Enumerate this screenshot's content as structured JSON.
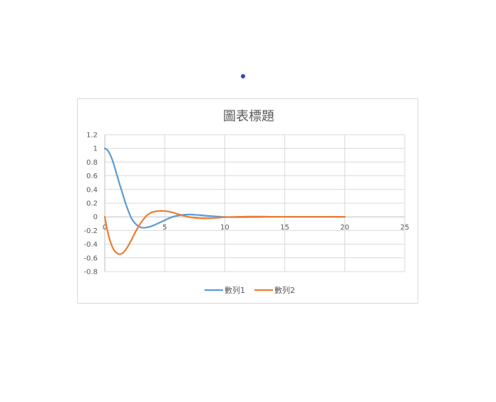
{
  "colors": {
    "series1": "#5b9bd5",
    "series2": "#ed7d31",
    "grid": "#d9d9d9",
    "axis": "#bfbfbf",
    "dot": "#3b3fc2"
  },
  "chart_data": {
    "type": "line",
    "title": "圖表標題",
    "xlabel": "",
    "ylabel": "",
    "xlim": [
      0,
      25
    ],
    "ylim": [
      -0.8,
      1.2
    ],
    "xticks": [
      0,
      5,
      10,
      15,
      20,
      25
    ],
    "yticks": [
      1.2,
      1,
      0.8,
      0.6,
      0.4,
      0.2,
      0,
      -0.2,
      -0.4,
      -0.6,
      -0.8
    ],
    "grid": true,
    "legend": "bottom",
    "series": [
      {
        "name": "數列1",
        "color": "#5b9bd5",
        "x": [
          0,
          0.25,
          0.5,
          0.75,
          1,
          1.25,
          1.5,
          1.75,
          2,
          2.25,
          2.5,
          2.75,
          3,
          3.25,
          3.5,
          3.75,
          4,
          4.5,
          5,
          5.5,
          6,
          6.5,
          7,
          7.5,
          8,
          8.5,
          9,
          9.5,
          10,
          11,
          12,
          13,
          14,
          15,
          16,
          17,
          18,
          19,
          20
        ],
        "y": [
          1.0,
          0.97,
          0.89,
          0.77,
          0.62,
          0.47,
          0.33,
          0.19,
          0.07,
          -0.03,
          -0.09,
          -0.13,
          -0.155,
          -0.16,
          -0.155,
          -0.145,
          -0.13,
          -0.09,
          -0.05,
          -0.01,
          0.015,
          0.028,
          0.033,
          0.03,
          0.024,
          0.016,
          0.009,
          0.003,
          -0.002,
          -0.005,
          -0.004,
          -0.002,
          0.0,
          0.0,
          0.0,
          0.0,
          0.0,
          0.0,
          0.0
        ]
      },
      {
        "name": "數列2",
        "color": "#ed7d31",
        "x": [
          0,
          0.25,
          0.5,
          0.75,
          1,
          1.25,
          1.5,
          1.75,
          2,
          2.25,
          2.5,
          2.75,
          3,
          3.25,
          3.5,
          3.75,
          4,
          4.5,
          5,
          5.5,
          6,
          6.5,
          7,
          7.5,
          8,
          8.5,
          9,
          9.5,
          10,
          11,
          12,
          13,
          14,
          15,
          16,
          17,
          18,
          19,
          20
        ],
        "y": [
          0.0,
          -0.22,
          -0.38,
          -0.48,
          -0.53,
          -0.545,
          -0.53,
          -0.48,
          -0.41,
          -0.33,
          -0.24,
          -0.16,
          -0.09,
          -0.03,
          0.02,
          0.05,
          0.07,
          0.085,
          0.085,
          0.07,
          0.045,
          0.02,
          -0.002,
          -0.015,
          -0.022,
          -0.022,
          -0.018,
          -0.012,
          -0.006,
          0.0,
          0.004,
          0.003,
          0.001,
          0.0,
          0.0,
          0.0,
          0.0,
          0.0,
          0.0
        ]
      }
    ]
  }
}
